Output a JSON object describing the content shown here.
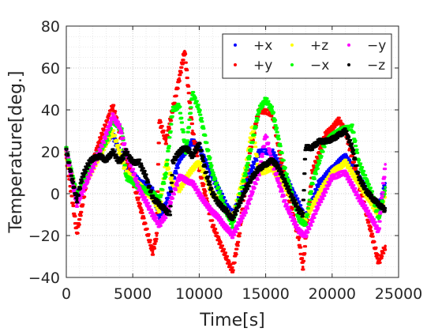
{
  "chart_data": {
    "type": "scatter",
    "xlabel": "Time[s]",
    "ylabel": "Temperature[deg.]",
    "xlim": [
      0,
      25000
    ],
    "ylim": [
      -40,
      80
    ],
    "x_ticks": [
      0,
      5000,
      10000,
      15000,
      20000,
      25000
    ],
    "y_ticks": [
      -40,
      -20,
      0,
      20,
      40,
      60,
      80
    ],
    "x_tick_labels": [
      "0",
      "5000",
      "10000",
      "15000",
      "20000",
      "25000"
    ],
    "y_tick_labels": [
      "−40",
      "−20",
      "0",
      "20",
      "40",
      "60",
      "80"
    ],
    "grid": true,
    "minor_grid": true,
    "legend_position": "top-right",
    "series": [
      {
        "name": "+x",
        "color": "#0000ff",
        "points": [
          [
            0,
            20
          ],
          [
            800,
            -3
          ],
          [
            1500,
            10
          ],
          [
            2500,
            22
          ],
          [
            3500,
            28
          ],
          [
            4500,
            12
          ],
          [
            5500,
            6
          ],
          [
            6500,
            2
          ],
          [
            7000,
            -12
          ],
          [
            7500,
            -5
          ],
          [
            8500,
            16
          ],
          [
            9500,
            25
          ],
          [
            10000,
            22
          ],
          [
            11000,
            8
          ],
          [
            12000,
            -5
          ],
          [
            12500,
            -10
          ],
          [
            13500,
            5
          ],
          [
            14500,
            20
          ],
          [
            15500,
            20
          ],
          [
            16500,
            8
          ],
          [
            17500,
            -5
          ],
          [
            18000,
            -12
          ],
          [
            19000,
            5
          ],
          [
            20000,
            12
          ],
          [
            21000,
            18
          ],
          [
            22000,
            8
          ],
          [
            23000,
            -3
          ],
          [
            23500,
            -8
          ],
          [
            24000,
            5
          ]
        ]
      },
      {
        "name": "+y",
        "color": "#ff0000",
        "points": [
          [
            0,
            18
          ],
          [
            500,
            -5
          ],
          [
            800,
            -19
          ],
          [
            1500,
            5
          ],
          [
            2500,
            25
          ],
          [
            3500,
            42
          ],
          [
            4500,
            18
          ],
          [
            5500,
            -5
          ],
          [
            6500,
            -28
          ],
          [
            6800,
            -20
          ],
          [
            7000,
            35
          ],
          [
            7500,
            25
          ],
          [
            8500,
            55
          ],
          [
            8900,
            68
          ],
          [
            9500,
            30
          ],
          [
            10000,
            12
          ],
          [
            11000,
            -15
          ],
          [
            12000,
            -30
          ],
          [
            12500,
            -37
          ],
          [
            13000,
            -20
          ],
          [
            13800,
            20
          ],
          [
            14500,
            40
          ],
          [
            15500,
            38
          ],
          [
            16500,
            5
          ],
          [
            17500,
            -22
          ],
          [
            17800,
            -35
          ],
          [
            18500,
            10
          ],
          [
            19500,
            28
          ],
          [
            20500,
            35
          ],
          [
            21000,
            30
          ],
          [
            22000,
            5
          ],
          [
            23000,
            -20
          ],
          [
            23500,
            -33
          ],
          [
            24000,
            -25
          ]
        ]
      },
      {
        "name": "+z",
        "color": "#ffff00",
        "points": [
          [
            0,
            19
          ],
          [
            800,
            -2
          ],
          [
            2000,
            12
          ],
          [
            3500,
            30
          ],
          [
            4500,
            10
          ],
          [
            5500,
            4
          ],
          [
            6500,
            -2
          ],
          [
            7000,
            -8
          ],
          [
            7500,
            15
          ],
          [
            8000,
            5
          ],
          [
            8500,
            2
          ],
          [
            9500,
            12
          ],
          [
            10000,
            15
          ],
          [
            11000,
            0
          ],
          [
            12000,
            -8
          ],
          [
            12500,
            -12
          ],
          [
            13500,
            12
          ],
          [
            14000,
            32
          ],
          [
            14500,
            10
          ],
          [
            15500,
            12
          ],
          [
            16500,
            3
          ],
          [
            17500,
            -8
          ],
          [
            18000,
            -12
          ],
          [
            19000,
            0
          ],
          [
            20000,
            10
          ],
          [
            21000,
            15
          ],
          [
            22000,
            5
          ],
          [
            23000,
            -5
          ],
          [
            23500,
            -10
          ],
          [
            24000,
            0
          ]
        ]
      },
      {
        "name": "−x",
        "color": "#00ff00",
        "points": [
          [
            0,
            21
          ],
          [
            800,
            -1
          ],
          [
            2000,
            15
          ],
          [
            3000,
            25
          ],
          [
            3500,
            35
          ],
          [
            4200,
            30
          ],
          [
            4500,
            8
          ],
          [
            5500,
            3
          ],
          [
            6500,
            0
          ],
          [
            7000,
            -3
          ],
          [
            7500,
            10
          ],
          [
            8000,
            40
          ],
          [
            8500,
            42
          ],
          [
            9000,
            20
          ],
          [
            9500,
            48
          ],
          [
            10000,
            40
          ],
          [
            11000,
            10
          ],
          [
            12000,
            -8
          ],
          [
            12500,
            -15
          ],
          [
            13500,
            10
          ],
          [
            14500,
            40
          ],
          [
            15000,
            45
          ],
          [
            15500,
            40
          ],
          [
            16500,
            10
          ],
          [
            17500,
            -12
          ],
          [
            18000,
            -15
          ],
          [
            18500,
            5
          ],
          [
            19500,
            25
          ],
          [
            20500,
            30
          ],
          [
            21500,
            32
          ],
          [
            22000,
            15
          ],
          [
            23000,
            0
          ],
          [
            23500,
            -12
          ],
          [
            24000,
            3
          ]
        ]
      },
      {
        "name": "−y",
        "color": "#ff00ff",
        "points": [
          [
            0,
            20
          ],
          [
            800,
            -5
          ],
          [
            1500,
            5
          ],
          [
            2500,
            20
          ],
          [
            3500,
            37
          ],
          [
            4000,
            32
          ],
          [
            4500,
            20
          ],
          [
            5500,
            2
          ],
          [
            6500,
            -10
          ],
          [
            7000,
            -15
          ],
          [
            7500,
            -10
          ],
          [
            8500,
            8
          ],
          [
            9500,
            5
          ],
          [
            10500,
            -5
          ],
          [
            11500,
            -12
          ],
          [
            12500,
            -20
          ],
          [
            13500,
            -8
          ],
          [
            14500,
            10
          ],
          [
            15000,
            28
          ],
          [
            15500,
            15
          ],
          [
            16500,
            -5
          ],
          [
            17500,
            -18
          ],
          [
            18000,
            -20
          ],
          [
            19000,
            -5
          ],
          [
            20000,
            8
          ],
          [
            21000,
            10
          ],
          [
            22000,
            -2
          ],
          [
            23000,
            -12
          ],
          [
            23500,
            -18
          ],
          [
            24000,
            14
          ]
        ]
      },
      {
        "name": "−z",
        "color": "#000000",
        "points": [
          [
            0,
            21
          ],
          [
            500,
            5
          ],
          [
            800,
            -3
          ],
          [
            1200,
            8
          ],
          [
            1800,
            16
          ],
          [
            2500,
            18
          ],
          [
            3000,
            16
          ],
          [
            3500,
            20
          ],
          [
            4000,
            15
          ],
          [
            4500,
            20
          ],
          [
            5000,
            15
          ],
          [
            5500,
            15
          ],
          [
            6000,
            8
          ],
          [
            6500,
            -2
          ],
          [
            7000,
            -5
          ],
          [
            7500,
            -8
          ],
          [
            7800,
            -10
          ],
          [
            8000,
            15
          ],
          [
            8500,
            20
          ],
          [
            9000,
            22
          ],
          [
            9500,
            18
          ],
          [
            10000,
            24
          ],
          [
            10500,
            10
          ],
          [
            11000,
            0
          ],
          [
            11500,
            -5
          ],
          [
            12000,
            -8
          ],
          [
            12500,
            -12
          ],
          [
            13000,
            -5
          ],
          [
            13500,
            2
          ],
          [
            14000,
            8
          ],
          [
            14500,
            12
          ],
          [
            15000,
            14
          ],
          [
            15500,
            16
          ],
          [
            16000,
            12
          ],
          [
            16500,
            5
          ],
          [
            17000,
            -2
          ],
          [
            17500,
            -8
          ],
          [
            17800,
            -10
          ],
          [
            18000,
            22
          ],
          [
            18500,
            22
          ],
          [
            19000,
            25
          ],
          [
            19500,
            25
          ],
          [
            20000,
            26
          ],
          [
            20500,
            28
          ],
          [
            21000,
            30
          ],
          [
            21500,
            22
          ],
          [
            22000,
            8
          ],
          [
            22500,
            2
          ],
          [
            23000,
            -2
          ],
          [
            23500,
            -5
          ],
          [
            24000,
            -8
          ]
        ]
      }
    ]
  }
}
